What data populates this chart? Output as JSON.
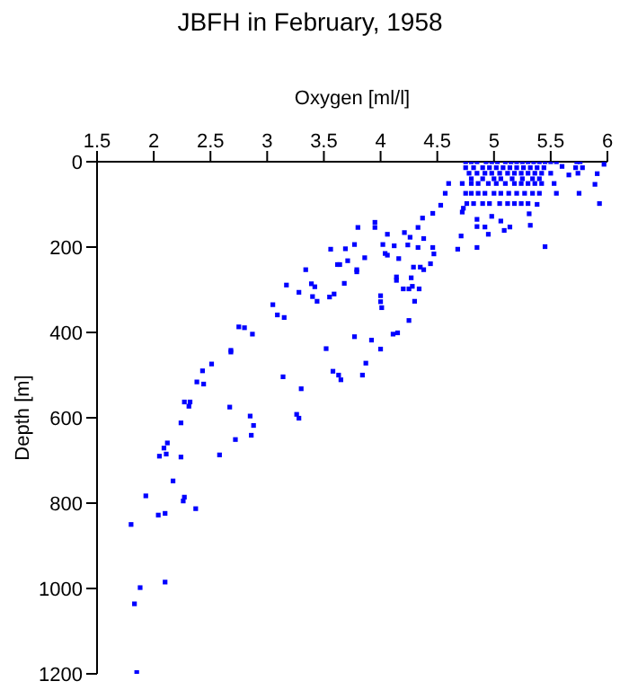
{
  "chart_data": {
    "type": "scatter",
    "title": "JBFH in February, 1958",
    "xlabel": "Oxygen [ml/l]",
    "ylabel": "Depth [m]",
    "xlim": [
      1.5,
      6
    ],
    "xticks": [
      1.5,
      2,
      2.5,
      3,
      3.5,
      4,
      4.5,
      5,
      5.5,
      6
    ],
    "ylim": [
      1200,
      0
    ],
    "yticks": [
      0,
      200,
      400,
      600,
      800,
      1000,
      1200
    ],
    "grid": false,
    "marker": "square",
    "series": [
      {
        "color": "#0000ff",
        "x": [
          3.8,
          3.56,
          3.69,
          3.77,
          3.71,
          3.62,
          3.64,
          3.79,
          3.34,
          3.39,
          3.42,
          3.17,
          3.28,
          3.4,
          3.44,
          3.55,
          3.59,
          3.68,
          3.79,
          3.05,
          3.09,
          3.15,
          2.75,
          2.8,
          2.87,
          2.68,
          2.68,
          3.77,
          3.52,
          2.51,
          2.43,
          2.38,
          2.44,
          3.14,
          3.3,
          3.58,
          3.63,
          3.65,
          2.27,
          2.32,
          2.31,
          2.67,
          2.85,
          3.26,
          3.28,
          2.24,
          2.88,
          2.86,
          2.72,
          2.12,
          2.09,
          2.11,
          2.05,
          2.24,
          2.58,
          2.17,
          1.93,
          2.27,
          2.26,
          2.37,
          2.1,
          2.04,
          1.8,
          2.1,
          1.88,
          1.83,
          1.85,
          4.6,
          4.57,
          4.53,
          4.46,
          4.37,
          4.33,
          4.26,
          4.38,
          4.21,
          4.06,
          3.95,
          3.95,
          4.02,
          4.04,
          4.06,
          4.12,
          4.16,
          4.24,
          4.33,
          4.46,
          4.47,
          4.68,
          4.71,
          4.85,
          4.72,
          4.73,
          4.85,
          4.85,
          4.92,
          4.95,
          5.09,
          5.14,
          4.98,
          5.06,
          5.32,
          5.45,
          5.31,
          5.38,
          5.93,
          5.89,
          5.75,
          5.55,
          5.53,
          5.66,
          5.91,
          5.97,
          5.6,
          3.86,
          4.0,
          4.0,
          4.01,
          4.14,
          4.14,
          4.2,
          4.25,
          4.28,
          4.34,
          4.27,
          4.29,
          4.35,
          4.38,
          4.44,
          4.3,
          4.25,
          4.11,
          4.15,
          3.92,
          4.0,
          3.87,
          3.84,
          4.75,
          4.8,
          4.85,
          4.93,
          4.98,
          5.03,
          5.1,
          5.15,
          5.2,
          5.25,
          5.3,
          5.35,
          5.4,
          5.45,
          5.5,
          5.55,
          5.73,
          5.76,
          4.75,
          4.82,
          4.9,
          4.96,
          5.02,
          5.08,
          5.14,
          5.2,
          5.26,
          5.32,
          5.38,
          5.44,
          5.72,
          5.78,
          4.78,
          4.85,
          4.92,
          4.98,
          5.05,
          5.12,
          5.18,
          5.24,
          5.3,
          5.36,
          5.42,
          5.5,
          5.74,
          4.8,
          4.9,
          5.0,
          5.06,
          5.16,
          5.25,
          5.34,
          5.4,
          4.72,
          4.8,
          4.86,
          4.95,
          5.02,
          5.1,
          5.18,
          5.24,
          5.3,
          5.36,
          5.42,
          4.75,
          4.8,
          4.86,
          4.92,
          5.0,
          5.06,
          5.13,
          5.2,
          5.27,
          5.34,
          5.4,
          4.76,
          4.82,
          4.9,
          4.96,
          5.05,
          5.12,
          5.18,
          5.24,
          5.3
        ],
        "values": [
          154,
          205,
          204,
          194,
          232,
          241,
          241,
          253,
          253,
          286,
          293,
          289,
          306,
          316,
          327,
          317,
          310,
          285,
          258,
          335,
          359,
          365,
          387,
          389,
          404,
          442,
          446,
          410,
          438,
          474,
          490,
          516,
          521,
          504,
          532,
          491,
          500,
          511,
          563,
          563,
          573,
          575,
          596,
          592,
          601,
          612,
          618,
          641,
          651,
          659,
          671,
          685,
          690,
          692,
          687,
          748,
          783,
          786,
          795,
          813,
          824,
          828,
          850,
          985,
          998,
          1036,
          1197,
          51,
          74,
          102,
          121,
          132,
          154,
          177,
          180,
          166,
          170,
          142,
          154,
          194,
          215,
          219,
          197,
          227,
          195,
          201,
          201,
          216,
          205,
          174,
          201,
          118,
          109,
          135,
          152,
          153,
          170,
          161,
          153,
          128,
          139,
          149,
          199,
          122,
          100,
          98,
          53,
          74,
          74,
          51,
          31,
          28,
          6,
          11,
          225,
          314,
          328,
          342,
          270,
          278,
          298,
          298,
          292,
          298,
          272,
          247,
          247,
          253,
          239,
          327,
          372,
          404,
          401,
          418,
          439,
          472,
          500,
          0,
          0,
          0,
          0,
          0,
          0,
          0,
          0,
          0,
          0,
          0,
          0,
          0,
          0,
          0,
          0,
          0,
          0,
          14,
          14,
          14,
          14,
          14,
          14,
          14,
          14,
          14,
          14,
          14,
          14,
          14,
          14,
          27,
          27,
          27,
          27,
          27,
          27,
          27,
          27,
          27,
          27,
          27,
          27,
          27,
          40,
          40,
          40,
          40,
          40,
          40,
          40,
          40,
          51,
          51,
          51,
          51,
          51,
          51,
          51,
          51,
          51,
          51,
          51,
          74,
          74,
          74,
          74,
          74,
          74,
          74,
          74,
          74,
          74,
          74,
          98,
          98,
          98,
          98,
          98,
          98,
          98,
          98,
          98
        ]
      }
    ]
  }
}
